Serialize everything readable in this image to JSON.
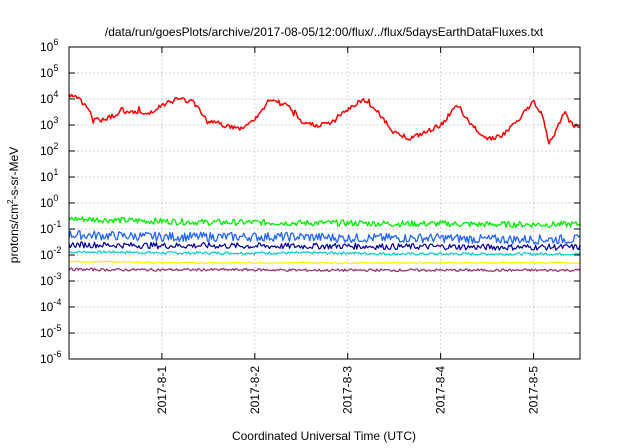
{
  "chart_data": {
    "type": "line",
    "title": "/data/run/goesPlots/archive/2017-08-05/12:00/flux/../flux/5daysEarthDataFluxes.txt",
    "xlabel": "Coordinated Universal Time (UTC)",
    "ylabel": {
      "main": "protons/cm",
      "sup": "2",
      "rest": "-s-sr-MeV"
    },
    "yscale": "log",
    "ylim": [
      1e-06,
      1000000.0
    ],
    "xlim": [
      "2017-07-31T00:00",
      "2017-08-05T12:00"
    ],
    "grid": true,
    "x_tick_labels": [
      "2017-8-1",
      "2017-8-2",
      "2017-8-3",
      "2017-8-4",
      "2017-8-5"
    ],
    "x_ticks": [
      "2017-08-01T00:00",
      "2017-08-02T00:00",
      "2017-08-03T00:00",
      "2017-08-04T00:00",
      "2017-08-05T00:00"
    ],
    "y_ticks": [
      {
        "base": "10",
        "exp": "-6",
        "value": 1e-06
      },
      {
        "base": "10",
        "exp": "-5",
        "value": 1e-05
      },
      {
        "base": "10",
        "exp": "-4",
        "value": 0.0001
      },
      {
        "base": "10",
        "exp": "-3",
        "value": 0.001
      },
      {
        "base": "10",
        "exp": "-2",
        "value": 0.01
      },
      {
        "base": "10",
        "exp": "-1",
        "value": 0.1
      },
      {
        "base": "10",
        "exp": "0",
        "value": 1
      },
      {
        "base": "10",
        "exp": "1",
        "value": 10
      },
      {
        "base": "10",
        "exp": "2",
        "value": 100
      },
      {
        "base": "10",
        "exp": "3",
        "value": 1000
      },
      {
        "base": "10",
        "exp": "4",
        "value": 10000
      },
      {
        "base": "10",
        "exp": "5",
        "value": 100000
      },
      {
        "base": "10",
        "exp": "6",
        "value": 1000000
      }
    ],
    "series": [
      {
        "color": "#ff0000",
        "x": [
          "2017-07-31T00:00",
          "2017-07-31T02:00",
          "2017-07-31T04:00",
          "2017-07-31T06:00",
          "2017-07-31T08:00",
          "2017-07-31T12:00",
          "2017-07-31T16:00",
          "2017-07-31T20:00",
          "2017-08-01T00:00",
          "2017-08-01T04:00",
          "2017-08-01T08:00",
          "2017-08-01T12:00",
          "2017-08-01T16:00",
          "2017-08-01T20:00",
          "2017-08-02T00:00",
          "2017-08-02T04:00",
          "2017-08-02T08:00",
          "2017-08-02T12:00",
          "2017-08-02T16:00",
          "2017-08-02T20:00",
          "2017-08-03T00:00",
          "2017-08-03T04:00",
          "2017-08-03T08:00",
          "2017-08-03T12:00",
          "2017-08-03T16:00",
          "2017-08-03T20:00",
          "2017-08-04T00:00",
          "2017-08-04T04:00",
          "2017-08-04T08:00",
          "2017-08-04T12:00",
          "2017-08-04T16:00",
          "2017-08-04T20:00",
          "2017-08-05T00:00",
          "2017-08-05T02:00",
          "2017-08-05T04:00",
          "2017-08-05T06:00",
          "2017-08-05T08:00",
          "2017-08-05T10:00",
          "2017-08-05T12:00"
        ],
        "values": [
          15000,
          12000,
          6000,
          2000,
          1500,
          2500,
          3500,
          2500,
          6000,
          10000,
          8000,
          1500,
          1000,
          700,
          1500,
          10000,
          6000,
          1200,
          1000,
          1200,
          4000,
          10000,
          3000,
          500,
          300,
          500,
          1000,
          5000,
          1000,
          300,
          400,
          1500,
          8000,
          3000,
          200,
          800,
          3000,
          1000,
          800
        ]
      },
      {
        "color": "#00ee00",
        "x": [
          "2017-07-31T00:00",
          "2017-07-31T12:00",
          "2017-08-01T00:00",
          "2017-08-01T12:00",
          "2017-08-02T00:00",
          "2017-08-02T12:00",
          "2017-08-03T00:00",
          "2017-08-03T12:00",
          "2017-08-04T00:00",
          "2017-08-04T12:00",
          "2017-08-05T00:00",
          "2017-08-05T12:00"
        ],
        "values": [
          0.25,
          0.22,
          0.2,
          0.18,
          0.18,
          0.17,
          0.17,
          0.16,
          0.16,
          0.15,
          0.15,
          0.15
        ]
      },
      {
        "color": "#2266ff",
        "x": [
          "2017-07-31T00:00",
          "2017-07-31T12:00",
          "2017-08-01T00:00",
          "2017-08-01T12:00",
          "2017-08-02T00:00",
          "2017-08-02T12:00",
          "2017-08-03T00:00",
          "2017-08-03T12:00",
          "2017-08-04T00:00",
          "2017-08-04T12:00",
          "2017-08-05T00:00",
          "2017-08-05T12:00"
        ],
        "values": [
          0.06,
          0.055,
          0.05,
          0.05,
          0.05,
          0.05,
          0.045,
          0.045,
          0.045,
          0.04,
          0.04,
          0.04
        ]
      },
      {
        "color": "#000099",
        "x": [
          "2017-07-31T00:00",
          "2017-07-31T12:00",
          "2017-08-01T00:00",
          "2017-08-01T12:00",
          "2017-08-02T00:00",
          "2017-08-02T12:00",
          "2017-08-03T00:00",
          "2017-08-03T12:00",
          "2017-08-04T00:00",
          "2017-08-04T12:00",
          "2017-08-05T00:00",
          "2017-08-05T12:00"
        ],
        "values": [
          0.025,
          0.024,
          0.023,
          0.023,
          0.022,
          0.022,
          0.022,
          0.021,
          0.021,
          0.02,
          0.02,
          0.02
        ]
      },
      {
        "color": "#00cccc",
        "x": [
          "2017-07-31T00:00",
          "2017-07-31T12:00",
          "2017-08-01T00:00",
          "2017-08-01T12:00",
          "2017-08-02T00:00",
          "2017-08-02T12:00",
          "2017-08-03T00:00",
          "2017-08-03T12:00",
          "2017-08-04T00:00",
          "2017-08-04T12:00",
          "2017-08-05T00:00",
          "2017-08-05T12:00"
        ],
        "values": [
          0.013,
          0.013,
          0.012,
          0.012,
          0.012,
          0.012,
          0.012,
          0.011,
          0.011,
          0.011,
          0.011,
          0.011
        ]
      },
      {
        "color": "#ffee00",
        "x": [
          "2017-07-31T00:00",
          "2017-07-31T12:00",
          "2017-08-01T00:00",
          "2017-08-01T12:00",
          "2017-08-02T00:00",
          "2017-08-02T12:00",
          "2017-08-03T00:00",
          "2017-08-03T12:00",
          "2017-08-04T00:00",
          "2017-08-04T12:00",
          "2017-08-05T00:00",
          "2017-08-05T12:00"
        ],
        "values": [
          0.0055,
          0.0055,
          0.005,
          0.005,
          0.005,
          0.005,
          0.005,
          0.005,
          0.005,
          0.005,
          0.005,
          0.005
        ]
      },
      {
        "color": "#993377",
        "x": [
          "2017-07-31T00:00",
          "2017-07-31T12:00",
          "2017-08-01T00:00",
          "2017-08-01T12:00",
          "2017-08-02T00:00",
          "2017-08-02T12:00",
          "2017-08-03T00:00",
          "2017-08-03T12:00",
          "2017-08-04T00:00",
          "2017-08-04T12:00",
          "2017-08-05T00:00",
          "2017-08-05T12:00"
        ],
        "values": [
          0.0028,
          0.0027,
          0.0027,
          0.0027,
          0.0027,
          0.0026,
          0.0026,
          0.0026,
          0.0026,
          0.0026,
          0.0026,
          0.0026
        ]
      }
    ]
  }
}
